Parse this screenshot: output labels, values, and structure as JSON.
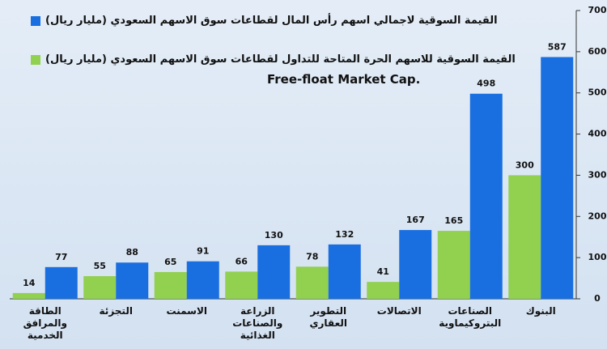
{
  "chart_data": {
    "type": "bar",
    "annotation": "Free-float Market Cap.",
    "categories": [
      "الطاقة والمرافق الخدمية",
      "التجزئة",
      "الاسمنت",
      "الزراعة والصناعات الغذائية",
      "التطوير العقاري",
      "الاتصالات",
      "الصناعات البتروكيماوية",
      "البنوك"
    ],
    "series": [
      {
        "name": "القيمة السوقية للاسهم الحرة المتاحة للتداول لقطاعات سوق الاسهم السعودي (مليار ريال)",
        "color": "#92d050",
        "values": [
          14,
          55,
          65,
          66,
          78,
          41,
          165,
          300
        ]
      },
      {
        "name": "القيمة السوقية لاجمالي اسهم رأس المال لقطاعات سوق الاسهم السعودي (مليار ريال)",
        "color": "#1a6fe0",
        "values": [
          77,
          88,
          91,
          130,
          132,
          167,
          498,
          587
        ]
      }
    ],
    "ylim": [
      0,
      700
    ],
    "yticks": [
      0,
      100,
      200,
      300,
      400,
      500,
      600,
      700
    ],
    "grid": false
  }
}
